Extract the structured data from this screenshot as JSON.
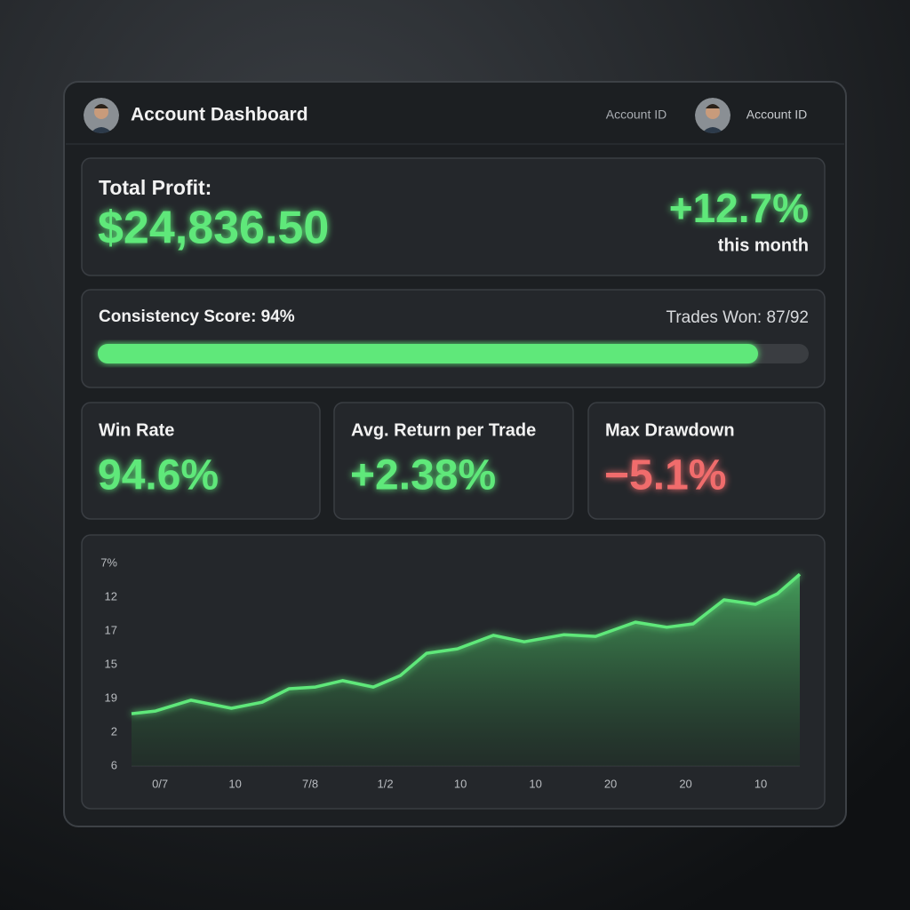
{
  "header": {
    "title": "Account Dashboard",
    "account_id_left": "Account ID",
    "account_id_right": "Account ID"
  },
  "profit": {
    "label": "Total Profit:",
    "value": "$24,836.50",
    "change": "+12.7%",
    "period": "this month"
  },
  "consistency": {
    "label": "Consistency Score: 94%",
    "trades": "Trades Won: 87/92"
  },
  "stats": [
    {
      "label": "Win Rate",
      "value": "94.6%"
    },
    {
      "label": "Avg. Return per Trade",
      "value": "+2.38%"
    },
    {
      "label": "Max Drawdown",
      "value": "−5.1%"
    }
  ],
  "chart_data": {
    "type": "line",
    "color": "#5ee87a",
    "x": [
      -0.38,
      -0.06,
      0.41,
      0.95,
      1.36,
      1.72,
      2.07,
      2.43,
      2.84,
      3.2,
      3.55,
      3.96,
      4.44,
      4.85,
      5.38,
      5.8,
      6.33,
      6.75,
      7.1,
      7.51,
      7.93,
      8.22,
      8.52
    ],
    "values": [
      1.55,
      1.63,
      1.95,
      1.71,
      1.89,
      2.29,
      2.34,
      2.53,
      2.34,
      2.68,
      3.34,
      3.47,
      3.87,
      3.68,
      3.89,
      3.84,
      4.26,
      4.11,
      4.21,
      4.92,
      4.79,
      5.1,
      5.68
    ],
    "xlim": [
      -0.38,
      8.52
    ],
    "xticks": [
      {
        "value": 0,
        "label": "0/7"
      },
      {
        "value": 1,
        "label": "10"
      },
      {
        "value": 2,
        "label": "7/8"
      },
      {
        "value": 3,
        "label": "1/2"
      },
      {
        "value": 4,
        "label": "10"
      },
      {
        "value": 5,
        "label": "10"
      },
      {
        "value": 6,
        "label": "20"
      },
      {
        "value": 7,
        "label": "20"
      },
      {
        "value": 8,
        "label": "10"
      }
    ],
    "ylim": [
      0,
      6
    ],
    "yticks": [
      {
        "value": 0,
        "label": "6"
      },
      {
        "value": 1,
        "label": "2"
      },
      {
        "value": 2,
        "label": "19"
      },
      {
        "value": 3,
        "label": "15"
      },
      {
        "value": 4,
        "label": "17"
      },
      {
        "value": 5,
        "label": "12"
      },
      {
        "value": 6,
        "label": "7%"
      }
    ]
  }
}
